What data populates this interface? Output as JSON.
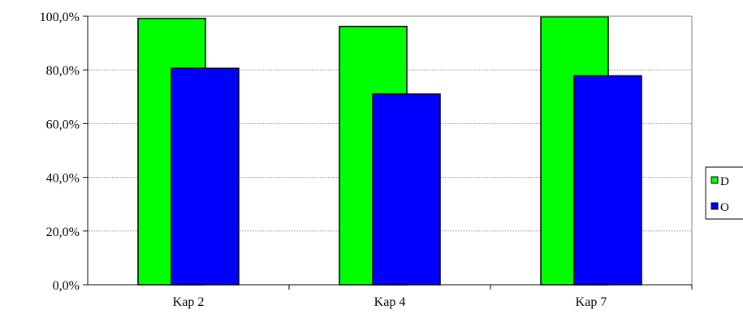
{
  "chart_data": {
    "type": "bar",
    "categories": [
      "Kap 2",
      "Kap 4",
      "Kap 7"
    ],
    "series": [
      {
        "name": "D",
        "values": [
          99.2,
          96.2,
          99.8
        ],
        "color": "#00ff00"
      },
      {
        "name": "O",
        "values": [
          80.6,
          71.0,
          77.8
        ],
        "color": "#0000ff"
      }
    ],
    "ylim": [
      0,
      100
    ],
    "yticks": [
      "0,0%",
      "20,0%",
      "40,0%",
      "60,0%",
      "80,0%",
      "100,0%"
    ],
    "grid": true,
    "legend": "right"
  }
}
